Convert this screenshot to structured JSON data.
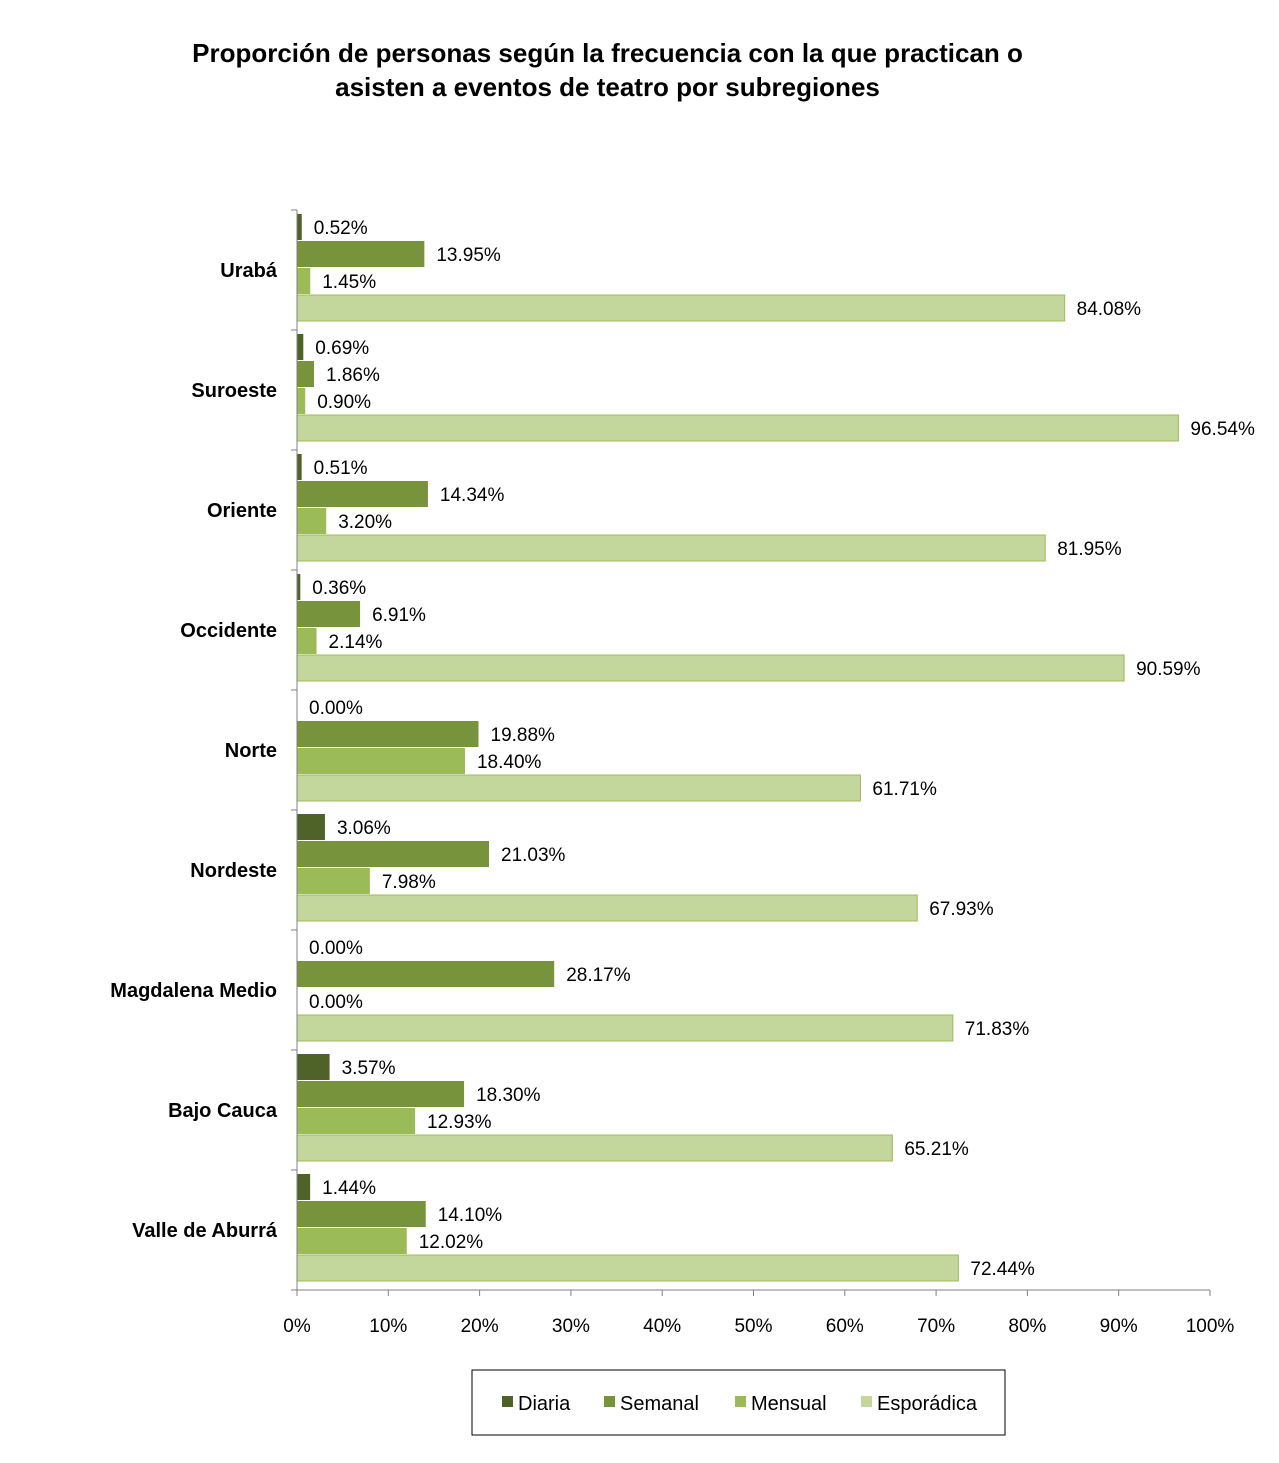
{
  "chart_data": {
    "type": "bar",
    "orientation": "horizontal",
    "title": [
      "Proporción de personas según la frecuencia con la que practican o",
      "asisten a eventos de teatro por subregiones"
    ],
    "categories": [
      "Urabá",
      "Suroeste",
      "Oriente",
      "Occidente",
      "Norte",
      "Nordeste",
      "Magdalena Medio",
      "Bajo Cauca",
      "Valle de Aburrá"
    ],
    "series": [
      {
        "name": "Diaria",
        "color": "#4f6228",
        "values": [
          0.52,
          0.69,
          0.51,
          0.36,
          0.0,
          3.06,
          0.0,
          3.57,
          1.44
        ],
        "labels": [
          "0.52%",
          "0.69%",
          "0.51%",
          "0.36%",
          "0.00%",
          "3.06%",
          "0.00%",
          "3.57%",
          "1.44%"
        ]
      },
      {
        "name": "Semanal",
        "color": "#77933c",
        "values": [
          13.95,
          1.86,
          14.34,
          6.91,
          19.88,
          21.03,
          28.17,
          18.3,
          14.1
        ],
        "labels": [
          "13.95%",
          "1.86%",
          "14.34%",
          "6.91%",
          "19.88%",
          "21.03%",
          "28.17%",
          "18.30%",
          "14.10%"
        ]
      },
      {
        "name": "Mensual",
        "color": "#9bbb59",
        "values": [
          1.45,
          0.9,
          3.2,
          2.14,
          18.4,
          7.98,
          0.0,
          12.93,
          12.02
        ],
        "labels": [
          "1.45%",
          "0.90%",
          "3.20%",
          "2.14%",
          "18.40%",
          "7.98%",
          "0.00%",
          "12.93%",
          "12.02%"
        ]
      },
      {
        "name": "Esporádica",
        "color": "#c3d69b",
        "values": [
          84.08,
          96.54,
          81.95,
          90.59,
          61.71,
          67.93,
          71.83,
          65.21,
          72.44
        ],
        "labels": [
          "84.08%",
          "96.54%",
          "81.95%",
          "90.59%",
          "61.71%",
          "67.93%",
          "71.83%",
          "65.21%",
          "72.44%"
        ]
      }
    ],
    "xlim": [
      0,
      100
    ],
    "xticks": [
      "0%",
      "10%",
      "20%",
      "30%",
      "40%",
      "50%",
      "60%",
      "70%",
      "80%",
      "90%",
      "100%"
    ],
    "grid": false,
    "legend_position": "bottom"
  }
}
